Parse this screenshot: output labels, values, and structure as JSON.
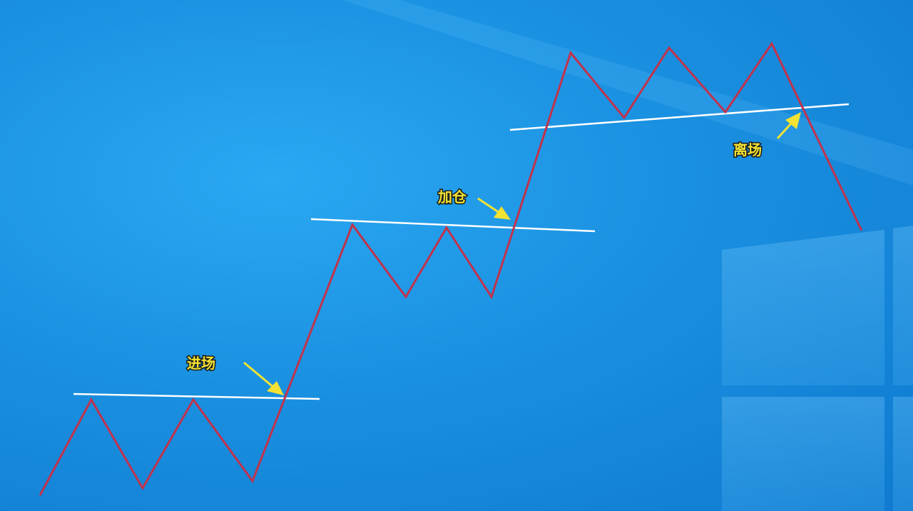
{
  "labels": {
    "entry": "进场",
    "add_position": "加仓",
    "exit": "离场"
  },
  "colors": {
    "price_line": "#c0334d",
    "level_line": "#ffffff",
    "arrow": "#f2e233",
    "background": "#1a90e0"
  }
}
